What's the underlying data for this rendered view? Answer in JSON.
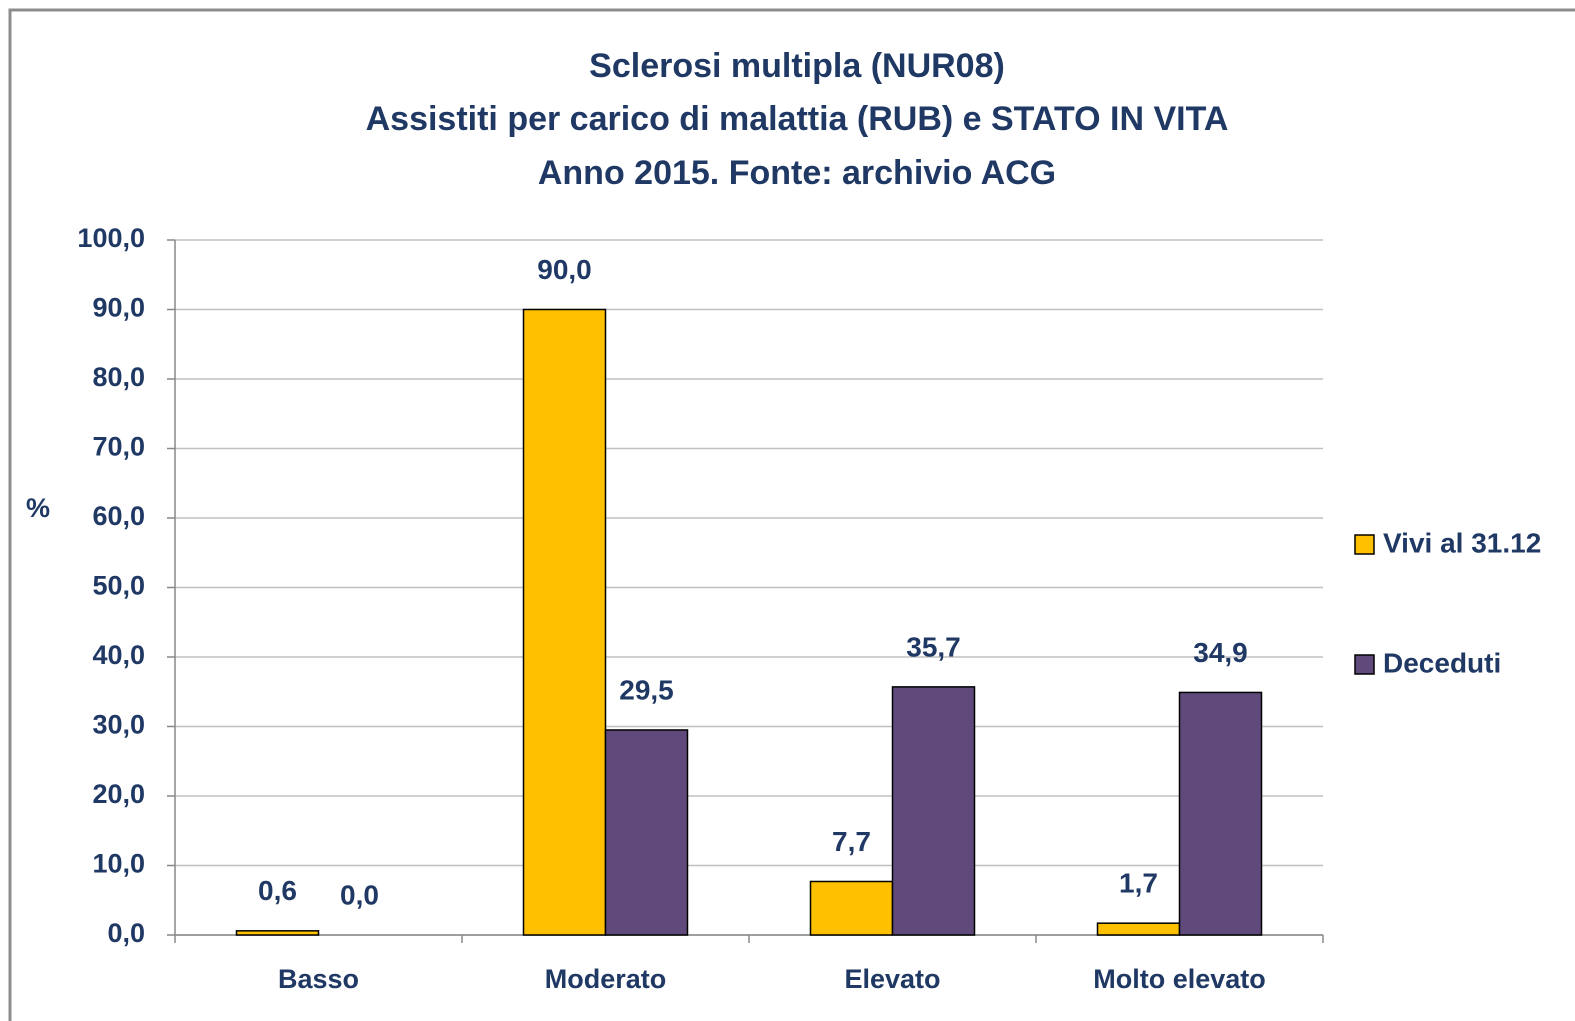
{
  "chart_data": {
    "type": "bar",
    "title": [
      "Sclerosi multipla (NUR08)",
      "Assistiti per carico di malattia (RUB) e STATO IN VITA",
      "Anno 2015. Fonte: archivio ACG"
    ],
    "y_label": "%",
    "categories": [
      "Basso",
      "Moderato",
      "Elevato",
      "Molto elevato"
    ],
    "series": [
      {
        "name": "Vivi al 31.12",
        "color": "#ffc000",
        "values": [
          0.6,
          90.0,
          7.7,
          1.7
        ],
        "value_labels": [
          "0,6",
          "90,0",
          "7,7",
          "1,7"
        ]
      },
      {
        "name": "Deceduti",
        "color": "#604a7b",
        "values": [
          0.0,
          29.5,
          35.7,
          34.9
        ],
        "value_labels": [
          "0,0",
          "29,5",
          "35,7",
          "34,9"
        ]
      }
    ],
    "ylim": [
      0,
      100
    ],
    "yticks": [
      {
        "value": 0,
        "label": "0,0"
      },
      {
        "value": 10,
        "label": "10,0"
      },
      {
        "value": 20,
        "label": "20,0"
      },
      {
        "value": 30,
        "label": "30,0"
      },
      {
        "value": 40,
        "label": "40,0"
      },
      {
        "value": 50,
        "label": "50,0"
      },
      {
        "value": 60,
        "label": "60,0"
      },
      {
        "value": 70,
        "label": "70,0"
      },
      {
        "value": 80,
        "label": "80,0"
      },
      {
        "value": 90,
        "label": "90,0"
      },
      {
        "value": 100,
        "label": "100,0"
      }
    ],
    "grid": true,
    "legend": "right"
  }
}
